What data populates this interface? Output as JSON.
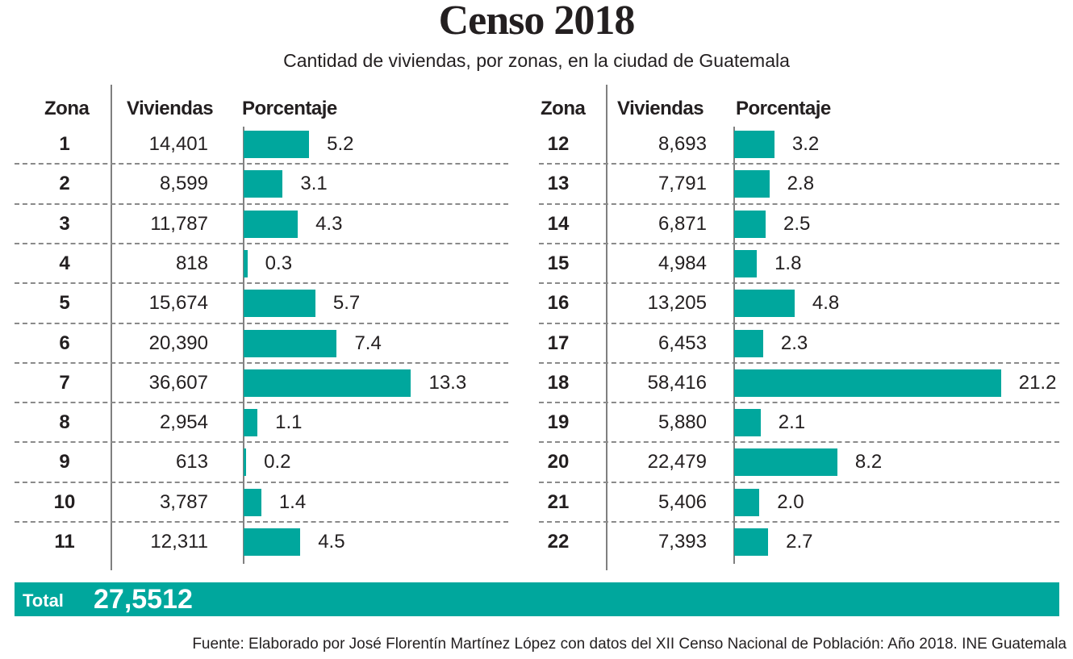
{
  "header": {
    "title": "Censo 2018",
    "subtitle": "Cantidad de viviendas, por zonas, en la ciudad de Guatemala"
  },
  "columns": {
    "zona": "Zona",
    "viviendas": "Viviendas",
    "porcentaje": "Porcentaje"
  },
  "total": {
    "label": "Total",
    "value": "27,5512"
  },
  "source": "Fuente: Elaborado por José Florentín Martínez López con datos del XII Censo Nacional de Población: Año 2018. INE Guatemala",
  "colors": {
    "bar": "#00a79d",
    "text": "#231f20",
    "rule": "#808080"
  },
  "chart_data": {
    "type": "bar",
    "orientation": "horizontal",
    "title": "Censo 2018",
    "subtitle": "Cantidad de viviendas, por zonas, en la ciudad de Guatemala",
    "xlabel": "Porcentaje",
    "ylabel": "Zona",
    "xlim": [
      0,
      22
    ],
    "grid": false,
    "panels": [
      {
        "rows": [
          {
            "zona": "1",
            "viviendas": "14,401",
            "porcentaje": 5.2,
            "label": "5.2"
          },
          {
            "zona": "2",
            "viviendas": "8,599",
            "porcentaje": 3.1,
            "label": "3.1"
          },
          {
            "zona": "3",
            "viviendas": "11,787",
            "porcentaje": 4.3,
            "label": "4.3"
          },
          {
            "zona": "4",
            "viviendas": "818",
            "porcentaje": 0.3,
            "label": "0.3"
          },
          {
            "zona": "5",
            "viviendas": "15,674",
            "porcentaje": 5.7,
            "label": "5.7"
          },
          {
            "zona": "6",
            "viviendas": "20,390",
            "porcentaje": 7.4,
            "label": "7.4"
          },
          {
            "zona": "7",
            "viviendas": "36,607",
            "porcentaje": 13.3,
            "label": "13.3"
          },
          {
            "zona": "8",
            "viviendas": "2,954",
            "porcentaje": 1.1,
            "label": "1.1"
          },
          {
            "zona": "9",
            "viviendas": "613",
            "porcentaje": 0.2,
            "label": "0.2"
          },
          {
            "zona": "10",
            "viviendas": "3,787",
            "porcentaje": 1.4,
            "label": "1.4"
          },
          {
            "zona": "11",
            "viviendas": "12,311",
            "porcentaje": 4.5,
            "label": "4.5"
          }
        ]
      },
      {
        "rows": [
          {
            "zona": "12",
            "viviendas": "8,693",
            "porcentaje": 3.2,
            "label": "3.2"
          },
          {
            "zona": "13",
            "viviendas": "7,791",
            "porcentaje": 2.8,
            "label": "2.8"
          },
          {
            "zona": "14",
            "viviendas": "6,871",
            "porcentaje": 2.5,
            "label": "2.5"
          },
          {
            "zona": "15",
            "viviendas": "4,984",
            "porcentaje": 1.8,
            "label": "1.8"
          },
          {
            "zona": "16",
            "viviendas": "13,205",
            "porcentaje": 4.8,
            "label": "4.8"
          },
          {
            "zona": "17",
            "viviendas": "6,453",
            "porcentaje": 2.3,
            "label": "2.3"
          },
          {
            "zona": "18",
            "viviendas": "58,416",
            "porcentaje": 21.2,
            "label": "21.2"
          },
          {
            "zona": "19",
            "viviendas": "5,880",
            "porcentaje": 2.1,
            "label": "2.1"
          },
          {
            "zona": "20",
            "viviendas": "22,479",
            "porcentaje": 8.2,
            "label": "8.2"
          },
          {
            "zona": "21",
            "viviendas": "5,406",
            "porcentaje": 2.0,
            "label": "2.0"
          },
          {
            "zona": "22",
            "viviendas": "7,393",
            "porcentaje": 2.7,
            "label": "2.7"
          }
        ]
      }
    ]
  }
}
